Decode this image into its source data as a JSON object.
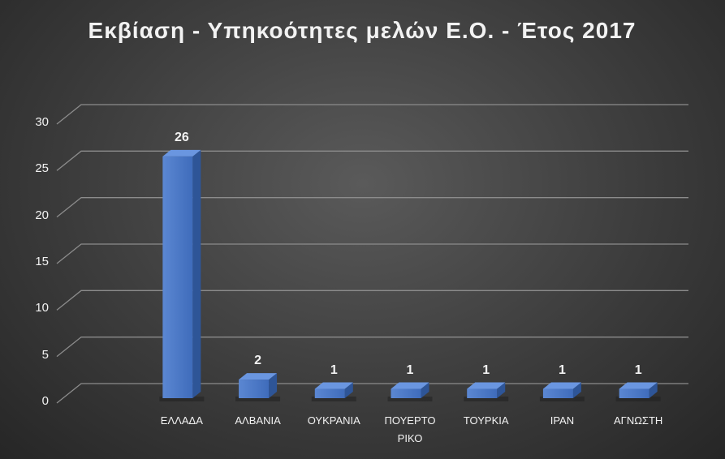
{
  "chart_data": {
    "type": "bar3d",
    "title": "Εκβίαση - Υπηκοότητες μελών Ε.Ο. - Έτος 2017",
    "categories": [
      "ΕΛΛΑΔΑ",
      "ΑΛΒΑΝΙΑ",
      "ΟΥΚΡΑΝΙΑ",
      "ΠΟΥΕΡΤΟ ΡΙΚΟ",
      "ΤΟΥΡΚΙΑ",
      "ΙΡΑΝ",
      "ΑΓΝΩΣΤΗ"
    ],
    "values": [
      26,
      2,
      1,
      1,
      1,
      1,
      1
    ],
    "color": "#4472c4",
    "ylim": [
      0,
      30
    ],
    "yticks": [
      0,
      5,
      10,
      15,
      20,
      25,
      30
    ],
    "grid": true
  }
}
